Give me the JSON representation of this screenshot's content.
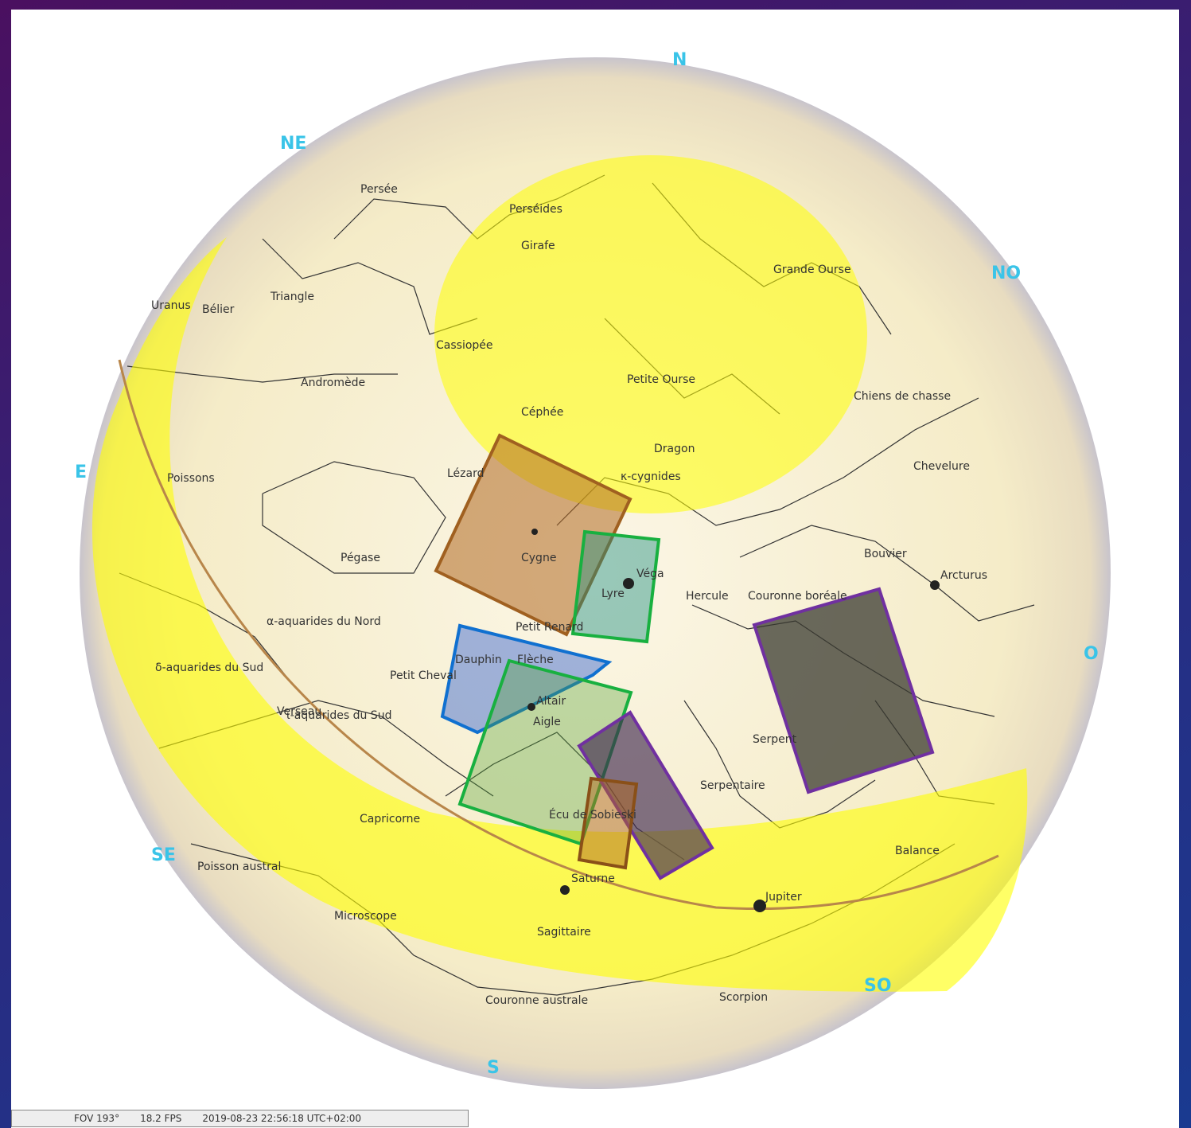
{
  "compass": [
    "N",
    "NE",
    "NO",
    "E",
    "O",
    "SE",
    "SO",
    "S"
  ],
  "labels": [
    "Persée",
    "Perséides",
    "Girafe",
    "Grande Ourse",
    "Uranus",
    "Bélier",
    "Triangle",
    "Cassiopée",
    "Andromède",
    "Petite Ourse",
    "Chiens de chasse",
    "Céphée",
    "Dragon",
    "Poissons",
    "Lézard",
    "κ-cygnides",
    "Chevelure",
    "Pégase",
    "Cygne",
    "Véga",
    "Lyre",
    "Bouvier",
    "Arcturus",
    "Hercule",
    "Couronne boréale",
    "α-aquarides du Nord",
    "Petit Renard",
    "δ-aquarides du Sud",
    "Dauphin",
    "Flèche",
    "Petit Cheval",
    "Altair",
    "Aigle",
    "Verseau",
    "ι-aquarides du Sud",
    "Serpent",
    "Serpentaire",
    "Capricorne",
    "Écu de Sobieski",
    "Balance",
    "Poisson austral",
    "Saturne",
    "Jupiter",
    "Microscope",
    "Sagittaire",
    "Couronne australe",
    "Scorpion"
  ],
  "status": {
    "fov": "FOV 193°",
    "fps": "18.2 FPS",
    "datetime": "2019-08-23 22:56:18 UTC+02:00"
  }
}
